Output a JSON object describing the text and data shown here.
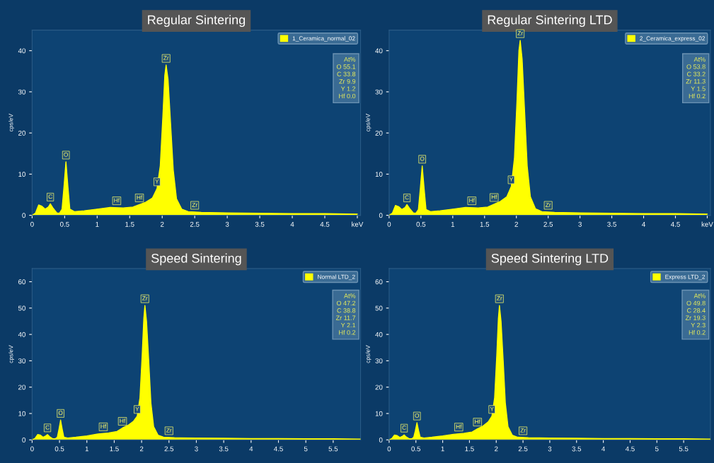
{
  "chart_data": [
    {
      "type": "area",
      "title": "Regular Sintering",
      "ylabel": "cps/eV",
      "xlim": [
        0,
        5.05
      ],
      "ylim": [
        0,
        45
      ],
      "xticks": [
        0,
        0.5,
        1,
        1.5,
        2,
        2.5,
        3,
        3.5,
        4,
        4.5,
        {
          "value": 5,
          "label": "keV"
        }
      ],
      "yticks": [
        0,
        10,
        20,
        30,
        40
      ],
      "grid": false,
      "legend": "top right",
      "series": [
        {
          "name": "1_Ceramica_normal_02",
          "color": "#ffff00",
          "x": [
            0,
            0.05,
            0.1,
            0.15,
            0.2,
            0.25,
            0.28,
            0.32,
            0.38,
            0.42,
            0.46,
            0.49,
            0.52,
            0.55,
            0.58,
            0.65,
            0.8,
            1.0,
            1.2,
            1.4,
            1.55,
            1.65,
            1.75,
            1.85,
            1.92,
            1.97,
            2.01,
            2.04,
            2.06,
            2.09,
            2.13,
            2.17,
            2.22,
            2.3,
            2.4,
            2.6,
            3,
            3.5,
            4,
            4.5,
            5
          ],
          "values": [
            0,
            0.5,
            2.5,
            2.2,
            1.5,
            2.0,
            2.8,
            1.8,
            0.6,
            0.5,
            1.5,
            7,
            13,
            7,
            1.5,
            0.9,
            1.1,
            1.5,
            1.9,
            1.8,
            2.0,
            2.6,
            3.2,
            4.2,
            6.5,
            12,
            24,
            34,
            36.5,
            33,
            22,
            11,
            4,
            1.5,
            0.9,
            0.7,
            0.6,
            0.5,
            0.4,
            0.4,
            0.3
          ]
        }
      ],
      "annotations": [
        "At%",
        "O 55.1",
        "C 33.8",
        "Zr 9.9",
        "Y 1.2",
        "Hf 0.0",
        {
          "text": "C",
          "x": 0.28,
          "y": 2.8
        },
        {
          "text": "O",
          "x": 0.52,
          "y": 13
        },
        {
          "text": "Hf",
          "x": 1.3,
          "y": 1.9
        },
        {
          "text": "Hf",
          "x": 1.65,
          "y": 2.6
        },
        {
          "text": "Y",
          "x": 1.92,
          "y": 6.5
        },
        {
          "text": "Zr",
          "x": 2.06,
          "y": 36.5
        },
        {
          "text": "Zr",
          "x": 2.5,
          "y": 0.8
        }
      ]
    },
    {
      "type": "area",
      "title": "Regular Sintering LTD",
      "ylabel": "cps/eV",
      "xlim": [
        0,
        5.05
      ],
      "ylim": [
        0,
        45
      ],
      "xticks": [
        0,
        0.5,
        1,
        1.5,
        2,
        2.5,
        3,
        3.5,
        4,
        4.5,
        {
          "value": 5,
          "label": "keV"
        }
      ],
      "yticks": [
        0,
        10,
        20,
        30,
        40
      ],
      "grid": false,
      "legend": "top right",
      "series": [
        {
          "name": "2_Ceramica_express_02",
          "color": "#ffff00",
          "x": [
            0,
            0.05,
            0.1,
            0.15,
            0.2,
            0.25,
            0.28,
            0.32,
            0.38,
            0.42,
            0.46,
            0.49,
            0.52,
            0.55,
            0.58,
            0.65,
            0.8,
            1.0,
            1.2,
            1.4,
            1.55,
            1.65,
            1.75,
            1.85,
            1.92,
            1.97,
            2.01,
            2.04,
            2.06,
            2.09,
            2.13,
            2.17,
            2.22,
            2.3,
            2.4,
            2.6,
            3,
            3.5,
            4,
            4.5,
            5
          ],
          "values": [
            0,
            0.5,
            2.4,
            2.1,
            1.4,
            1.9,
            2.6,
            1.7,
            0.6,
            0.5,
            1.4,
            6.5,
            12,
            6.5,
            1.4,
            0.9,
            1.1,
            1.5,
            1.9,
            1.8,
            2.0,
            2.7,
            3.4,
            4.5,
            7,
            14,
            28,
            40,
            42.5,
            38,
            25,
            12,
            4.5,
            1.6,
            0.9,
            0.7,
            0.6,
            0.5,
            0.4,
            0.4,
            0.3
          ]
        }
      ],
      "annotations": [
        "At%",
        "O 53.8",
        "C 33.2",
        "Zr 11.3",
        "Y 1.5",
        "Hf 0.2",
        {
          "text": "C",
          "x": 0.28,
          "y": 2.6
        },
        {
          "text": "O",
          "x": 0.52,
          "y": 12
        },
        {
          "text": "Hf",
          "x": 1.3,
          "y": 1.9
        },
        {
          "text": "Hf",
          "x": 1.65,
          "y": 2.7
        },
        {
          "text": "Y",
          "x": 1.92,
          "y": 7
        },
        {
          "text": "Zr",
          "x": 2.06,
          "y": 42.5
        },
        {
          "text": "Zr",
          "x": 2.5,
          "y": 0.8
        }
      ]
    },
    {
      "type": "area",
      "title": "Speed Sintering",
      "ylabel": "cps/eV",
      "xlim": [
        0,
        6
      ],
      "ylim": [
        0,
        65
      ],
      "xticks": [
        0,
        0.5,
        1,
        1.5,
        2,
        2.5,
        3,
        3.5,
        4,
        4.5,
        5,
        5.5
      ],
      "yticks": [
        0,
        10,
        20,
        30,
        40,
        50,
        60
      ],
      "grid": false,
      "legend": "top right",
      "series": [
        {
          "name": "Normal LTD_2",
          "color": "#ffff00",
          "x": [
            0,
            0.05,
            0.1,
            0.15,
            0.2,
            0.25,
            0.28,
            0.32,
            0.38,
            0.42,
            0.46,
            0.49,
            0.52,
            0.55,
            0.58,
            0.65,
            0.8,
            1.0,
            1.2,
            1.4,
            1.55,
            1.65,
            1.75,
            1.85,
            1.92,
            1.97,
            2.01,
            2.04,
            2.06,
            2.09,
            2.13,
            2.17,
            2.22,
            2.3,
            2.4,
            2.6,
            3,
            3.5,
            4,
            4.5,
            5,
            5.5,
            6
          ],
          "values": [
            0,
            0.5,
            2.0,
            1.8,
            1.0,
            1.5,
            2.0,
            1.2,
            0.4,
            0.4,
            1.0,
            4,
            7.5,
            4,
            1.0,
            0.7,
            1.0,
            1.5,
            2.2,
            2.6,
            3.2,
            4.5,
            5.5,
            7,
            9,
            16,
            32,
            46,
            51,
            45,
            30,
            14,
            5,
            1.8,
            1.0,
            0.8,
            0.7,
            0.6,
            0.5,
            0.5,
            0.4,
            0.4,
            0.3
          ]
        }
      ],
      "annotations": [
        "At%",
        "O 47.2",
        "C 38.8",
        "Zr 11.7",
        "Y 2.1",
        "Hf 0.2",
        {
          "text": "C",
          "x": 0.28,
          "y": 2.0
        },
        {
          "text": "O",
          "x": 0.52,
          "y": 7.5
        },
        {
          "text": "Hf",
          "x": 1.3,
          "y": 2.4
        },
        {
          "text": "Hf",
          "x": 1.65,
          "y": 4.5
        },
        {
          "text": "Y",
          "x": 1.92,
          "y": 9
        },
        {
          "text": "Zr",
          "x": 2.06,
          "y": 51
        },
        {
          "text": "Zr",
          "x": 2.5,
          "y": 0.9
        }
      ]
    },
    {
      "type": "area",
      "title": "Speed Sintering LTD",
      "ylabel": "cps/eV",
      "xlim": [
        0,
        6
      ],
      "ylim": [
        0,
        65
      ],
      "xticks": [
        0,
        0.5,
        1,
        1.5,
        2,
        2.5,
        3,
        3.5,
        4,
        4.5,
        5,
        5.5
      ],
      "yticks": [
        0,
        10,
        20,
        30,
        40,
        50,
        60
      ],
      "grid": false,
      "legend": "top right",
      "series": [
        {
          "name": "Express LTD_2",
          "color": "#ffff00",
          "x": [
            0,
            0.05,
            0.1,
            0.15,
            0.2,
            0.25,
            0.28,
            0.32,
            0.38,
            0.42,
            0.46,
            0.49,
            0.52,
            0.55,
            0.58,
            0.65,
            0.8,
            1.0,
            1.2,
            1.4,
            1.55,
            1.65,
            1.75,
            1.85,
            1.92,
            1.97,
            2.01,
            2.04,
            2.06,
            2.09,
            2.13,
            2.17,
            2.22,
            2.3,
            2.4,
            2.6,
            3,
            3.5,
            4,
            4.5,
            5,
            5.5,
            6
          ],
          "values": [
            0,
            0.5,
            1.8,
            1.6,
            0.9,
            1.4,
            1.9,
            1.1,
            0.4,
            0.4,
            1.0,
            3.5,
            6.5,
            3.5,
            1.0,
            0.7,
            1.0,
            1.5,
            2.1,
            2.5,
            3.0,
            4.2,
            5.2,
            6.8,
            9,
            16,
            32,
            46,
            51,
            45,
            30,
            14,
            5,
            1.8,
            1.0,
            0.8,
            0.7,
            0.6,
            0.5,
            0.5,
            0.4,
            0.4,
            0.3
          ]
        }
      ],
      "annotations": [
        "At%",
        "O 49.8",
        "C 28.4",
        "Zr 19.3",
        "Y 2.3",
        "Hf 0.2",
        {
          "text": "C",
          "x": 0.28,
          "y": 1.9
        },
        {
          "text": "O",
          "x": 0.52,
          "y": 6.5
        },
        {
          "text": "Hf",
          "x": 1.3,
          "y": 2.3
        },
        {
          "text": "Hf",
          "x": 1.65,
          "y": 4.2
        },
        {
          "text": "Y",
          "x": 1.92,
          "y": 9
        },
        {
          "text": "Zr",
          "x": 2.06,
          "y": 51
        },
        {
          "text": "Zr",
          "x": 2.5,
          "y": 0.9
        }
      ]
    }
  ]
}
